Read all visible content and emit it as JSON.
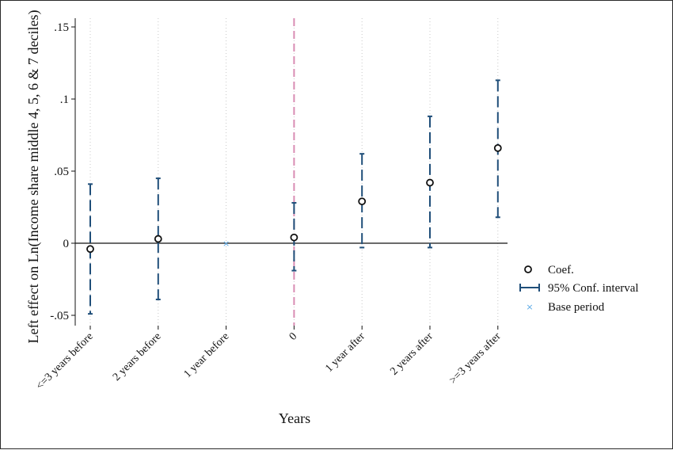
{
  "chart_data": {
    "type": "scatter",
    "title": "",
    "xlabel": "Years",
    "ylabel": "Left effect on Ln(Income share middle 4, 5, 6 & 7 deciles)",
    "categories": [
      "<=3 years before",
      "2 years before",
      "1 year before",
      "0",
      "1 year after",
      "2 years after",
      ">=3 years after"
    ],
    "series": [
      {
        "name": "Coef.",
        "values": [
          -0.004,
          0.003,
          null,
          0.004,
          0.029,
          0.042,
          0.066
        ]
      },
      {
        "name": "95% Conf. interval",
        "lower": [
          -0.049,
          -0.039,
          null,
          -0.019,
          -0.003,
          -0.003,
          0.018
        ],
        "upper": [
          0.041,
          0.045,
          null,
          0.028,
          0.062,
          0.088,
          0.113
        ]
      },
      {
        "name": "Base period",
        "values": [
          null,
          null,
          0,
          null,
          null,
          null,
          null
        ]
      }
    ],
    "yticks": [
      ".15",
      ".1",
      ".05",
      "0",
      "-.05"
    ],
    "ylim": [
      -0.055,
      0.157
    ],
    "reference_line": {
      "type": "vertical",
      "at_category": "0",
      "style": "dashed",
      "color": "#d98cb3"
    },
    "zero_line": true,
    "grid": "vertical dotted",
    "legend_position": "right",
    "colors": {
      "ci": "#1f4e79",
      "coef": "#111111",
      "base": "#5aa9e6",
      "ref_line": "#d98cb3"
    }
  }
}
